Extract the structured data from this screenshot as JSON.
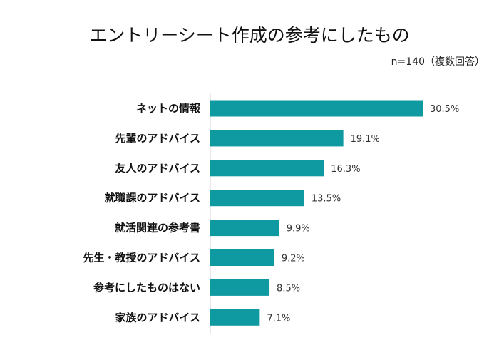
{
  "chart_data": {
    "type": "bar",
    "orientation": "horizontal",
    "title": "エントリーシート作成の参考にしたもの",
    "note": "n=140（複数回答）",
    "categories": [
      "ネットの情報",
      "先輩のアドバイス",
      "友人のアドバイス",
      "就職課のアドバイス",
      "就活関連の参考書",
      "先生・教授のアドバイス",
      "参考にしたものはない",
      "家族のアドバイス"
    ],
    "values": [
      30.5,
      19.1,
      16.3,
      13.5,
      9.9,
      9.2,
      8.5,
      7.1
    ],
    "value_labels": [
      "30.5%",
      "19.1%",
      "16.3%",
      "13.5%",
      "9.9%",
      "9.2%",
      "8.5%",
      "7.1%"
    ],
    "unit": "%",
    "xlim": [
      0,
      30.5
    ],
    "grid": false,
    "bar_color": "#0e9aa0"
  }
}
